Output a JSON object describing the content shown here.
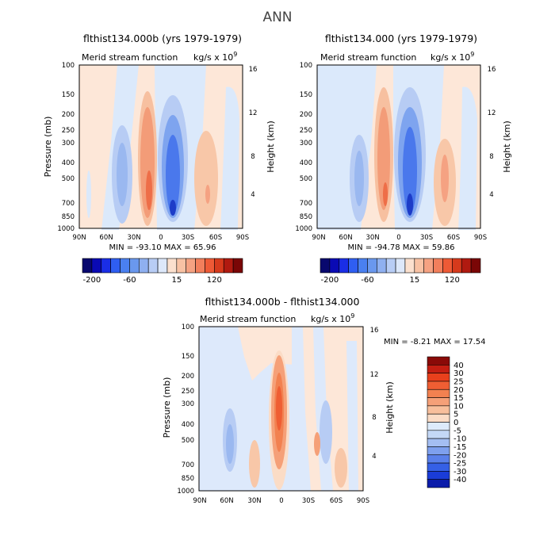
{
  "figure_title": "ANN",
  "chart_data": [
    {
      "type": "heatmap",
      "title": "flthist134.000b (yrs 1979-1979)",
      "subtitle_left": "Merid stream function",
      "subtitle_right": "kg/s x 10",
      "subtitle_exp": "9",
      "ylabel": "Pressure (mb)",
      "ylabel_right": "Height (km)",
      "x_ticks": [
        "90N",
        "60N",
        "30N",
        "0",
        "30S",
        "60S",
        "90S"
      ],
      "y_ticks": [
        "100",
        "150",
        "200",
        "250",
        "300",
        "400",
        "500",
        "700",
        "850",
        "1000"
      ],
      "y_ticks_right": [
        "16",
        "12",
        "8",
        "4"
      ],
      "stats": "MIN =  -93.10    MAX =  65.96",
      "cells": [
        {
          "lat": 60,
          "level": -15
        },
        {
          "lat": 45,
          "level": -20
        },
        {
          "lat": 15,
          "level": 40
        },
        {
          "lat": 8,
          "level": 60
        },
        {
          "lat": -8,
          "level": -60
        },
        {
          "lat": -15,
          "level": -90
        },
        {
          "lat": -55,
          "level": 20
        },
        {
          "lat": -80,
          "level": -5
        }
      ]
    },
    {
      "type": "heatmap",
      "title": "flthist134.000 (yrs 1979-1979)",
      "subtitle_left": "Merid stream function",
      "subtitle_right": "kg/s x 10",
      "subtitle_exp": "9",
      "ylabel": "",
      "ylabel_right": "Height (km)",
      "x_ticks": [
        "90N",
        "60N",
        "30N",
        "0",
        "30S",
        "60S",
        "90S"
      ],
      "y_ticks": [
        "100",
        "150",
        "200",
        "250",
        "300",
        "400",
        "500",
        "700",
        "850",
        "1000"
      ],
      "y_ticks_right": [
        "16",
        "12",
        "8",
        "4"
      ],
      "stats": "MIN =  -94.78    MAX =  59.86",
      "cells": [
        {
          "lat": 60,
          "level": -15
        },
        {
          "lat": 45,
          "level": -20
        },
        {
          "lat": 15,
          "level": 40
        },
        {
          "lat": 8,
          "level": 55
        },
        {
          "lat": -8,
          "level": -60
        },
        {
          "lat": -15,
          "level": -90
        },
        {
          "lat": -55,
          "level": 20
        },
        {
          "lat": -80,
          "level": -5
        }
      ]
    },
    {
      "type": "heatmap",
      "title": "flthist134.000b - flthist134.000",
      "subtitle_left": "Merid stream function",
      "subtitle_right": "kg/s x 10",
      "subtitle_exp": "9",
      "ylabel": "Pressure (mb)",
      "ylabel_right": "Height (km)",
      "x_ticks": [
        "90N",
        "60N",
        "30N",
        "0",
        "30S",
        "60S",
        "90S"
      ],
      "y_ticks": [
        "100",
        "150",
        "200",
        "250",
        "300",
        "400",
        "500",
        "700",
        "850",
        "1000"
      ],
      "y_ticks_right": [
        "16",
        "12",
        "8",
        "4"
      ],
      "stats": "MIN =   -8.21    MAX =  17.54",
      "cells": [
        {
          "lat": 45,
          "level": -10
        },
        {
          "lat": 20,
          "level": 5
        },
        {
          "lat": 0,
          "level": 15
        },
        {
          "lat": -20,
          "level": -5
        },
        {
          "lat": -45,
          "level": -5
        },
        {
          "lat": -60,
          "level": 5
        }
      ]
    }
  ],
  "colorbar_top": {
    "labels": [
      "-200",
      "-60",
      "15",
      "120"
    ],
    "colors": [
      "#08086e",
      "#0a0ab4",
      "#1a2ee6",
      "#2f5ef2",
      "#4a80f0",
      "#6a98ee",
      "#8fb0f0",
      "#b8cdf5",
      "#dde8fa",
      "#fbe0ce",
      "#f8c2a4",
      "#f5a282",
      "#f27f5c",
      "#ee5a36",
      "#d63a1c",
      "#b01a10",
      "#7a0606"
    ]
  },
  "colorbar_diff": {
    "labels": [
      "40",
      "30",
      "25",
      "20",
      "15",
      "10",
      "5",
      "0",
      "-5",
      "-10",
      "-15",
      "-20",
      "-25",
      "-30",
      "-40"
    ],
    "colors": [
      "#8a0a08",
      "#c41e12",
      "#e8401c",
      "#ef5e33",
      "#f28150",
      "#f5a078",
      "#f8bf9c",
      "#fbdcc6",
      "#ddebfb",
      "#c4d8f6",
      "#a4bef2",
      "#7ea0ee",
      "#5a80ea",
      "#3560e6",
      "#1a3cd8",
      "#0b1caa"
    ]
  }
}
